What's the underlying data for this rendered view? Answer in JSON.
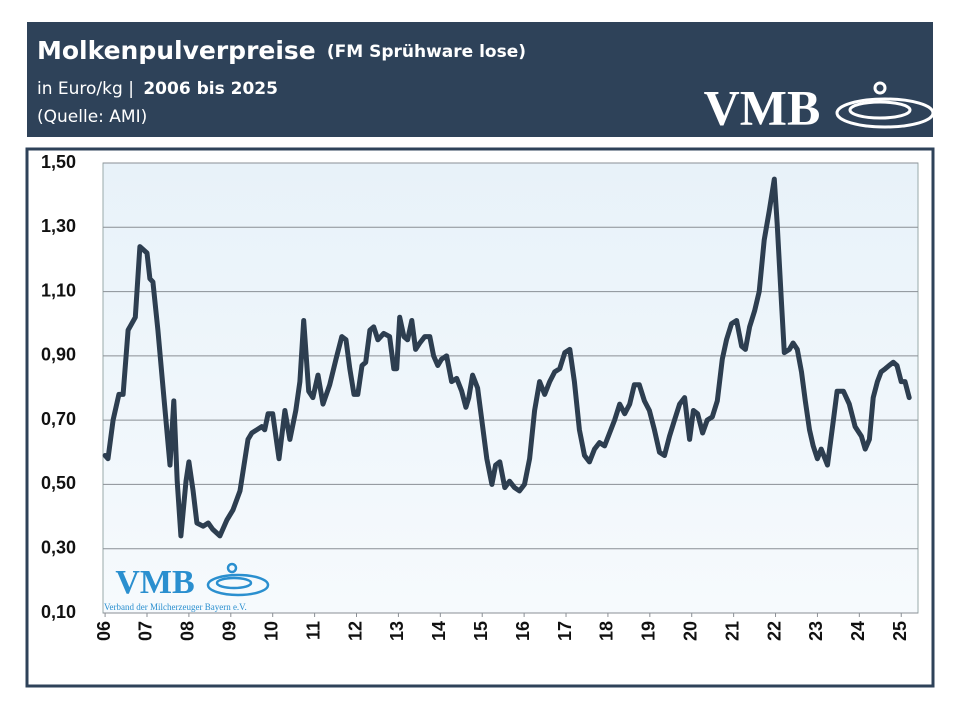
{
  "chart_data": {
    "type": "line",
    "title": "Molkenpulverpreise",
    "title_suffix": "(FM Sprühware lose)",
    "subtitle_unit": "in Euro/kg |",
    "subtitle_period": "2006 bis 2025",
    "source": "(Quelle: AMI)",
    "logo": "VMB",
    "watermark": "VMB",
    "watermark_caption": "Verband der Milcherzeuger Bayern e.V.",
    "color": "#2d3e50",
    "grid": true,
    "xlim": [
      2005.95,
      2025.4
    ],
    "xticks": [
      {
        "value": 2006,
        "label": "06"
      },
      {
        "value": 2007,
        "label": "07"
      },
      {
        "value": 2008,
        "label": "08"
      },
      {
        "value": 2009,
        "label": "09"
      },
      {
        "value": 2010,
        "label": "10"
      },
      {
        "value": 2011,
        "label": "11"
      },
      {
        "value": 2012,
        "label": "12"
      },
      {
        "value": 2013,
        "label": "13"
      },
      {
        "value": 2014,
        "label": "14"
      },
      {
        "value": 2015,
        "label": "15"
      },
      {
        "value": 2016,
        "label": "16"
      },
      {
        "value": 2017,
        "label": "17"
      },
      {
        "value": 2018,
        "label": "18"
      },
      {
        "value": 2019,
        "label": "19"
      },
      {
        "value": 2020,
        "label": "20"
      },
      {
        "value": 2021,
        "label": "21"
      },
      {
        "value": 2022,
        "label": "22"
      },
      {
        "value": 2023,
        "label": "23"
      },
      {
        "value": 2024,
        "label": "24"
      },
      {
        "value": 2025,
        "label": "25"
      }
    ],
    "ylim": [
      0.1,
      1.5
    ],
    "yticks": [
      {
        "value": 0.1,
        "label": "0,10"
      },
      {
        "value": 0.3,
        "label": "0,30"
      },
      {
        "value": 0.5,
        "label": "0,50"
      },
      {
        "value": 0.7,
        "label": "0,70"
      },
      {
        "value": 0.9,
        "label": "0,90"
      },
      {
        "value": 1.1,
        "label": "1,10"
      },
      {
        "value": 1.3,
        "label": "1,30"
      },
      {
        "value": 1.5,
        "label": "1,50"
      }
    ],
    "x": [
      2006.0,
      2006.07,
      2006.19,
      2006.33,
      2006.43,
      2006.55,
      2006.72,
      2006.83,
      2007.0,
      2007.07,
      2007.14,
      2007.26,
      2007.41,
      2007.55,
      2007.64,
      2007.72,
      2007.81,
      2007.93,
      2008.0,
      2008.1,
      2008.19,
      2008.34,
      2008.46,
      2008.57,
      2008.74,
      2008.91,
      2009.05,
      2009.22,
      2009.41,
      2009.5,
      2009.62,
      2009.74,
      2009.81,
      2009.89,
      2010.0,
      2010.15,
      2010.29,
      2010.41,
      2010.55,
      2010.65,
      2010.74,
      2010.86,
      2010.96,
      2011.08,
      2011.2,
      2011.36,
      2011.51,
      2011.65,
      2011.75,
      2011.84,
      2011.94,
      2012.03,
      2012.13,
      2012.22,
      2012.32,
      2012.41,
      2012.51,
      2012.65,
      2012.79,
      2012.89,
      2012.96,
      2013.03,
      2013.13,
      2013.22,
      2013.32,
      2013.41,
      2013.51,
      2013.63,
      2013.75,
      2013.84,
      2013.94,
      2014.03,
      2014.15,
      2014.27,
      2014.39,
      2014.51,
      2014.61,
      2014.68,
      2014.77,
      2014.89,
      2014.99,
      2015.11,
      2015.23,
      2015.32,
      2015.42,
      2015.54,
      2015.65,
      2015.77,
      2015.89,
      2016.01,
      2016.13,
      2016.25,
      2016.37,
      2016.49,
      2016.61,
      2016.73,
      2016.85,
      2016.97,
      2017.09,
      2017.2,
      2017.32,
      2017.44,
      2017.56,
      2017.68,
      2017.8,
      2017.92,
      2018.04,
      2018.16,
      2018.28,
      2018.4,
      2018.52,
      2018.63,
      2018.75,
      2018.87,
      2018.99,
      2019.11,
      2019.23,
      2019.35,
      2019.47,
      2019.59,
      2019.71,
      2019.83,
      2019.95,
      2020.04,
      2020.14,
      2020.26,
      2020.37,
      2020.49,
      2020.61,
      2020.73,
      2020.83,
      2020.95,
      2021.07,
      2021.19,
      2021.28,
      2021.38,
      2021.5,
      2021.61,
      2021.73,
      2021.85,
      2021.97,
      2022.04,
      2022.14,
      2022.21,
      2022.33,
      2022.42,
      2022.52,
      2022.62,
      2022.71,
      2022.81,
      2022.9,
      2023.0,
      2023.09,
      2023.24,
      2023.38,
      2023.47,
      2023.62,
      2023.76,
      2023.9,
      2024.05,
      2024.14,
      2024.24,
      2024.33,
      2024.43,
      2024.52,
      2024.62,
      2024.71,
      2024.81,
      2024.9,
      2025.0,
      2025.09,
      2025.19
    ],
    "values": [
      0.59,
      0.58,
      0.7,
      0.78,
      0.78,
      0.98,
      1.02,
      1.24,
      1.22,
      1.14,
      1.13,
      0.98,
      0.76,
      0.56,
      0.76,
      0.51,
      0.34,
      0.51,
      0.57,
      0.48,
      0.38,
      0.37,
      0.38,
      0.36,
      0.34,
      0.39,
      0.42,
      0.48,
      0.64,
      0.66,
      0.67,
      0.68,
      0.67,
      0.72,
      0.72,
      0.58,
      0.73,
      0.64,
      0.73,
      0.82,
      1.01,
      0.79,
      0.77,
      0.84,
      0.75,
      0.81,
      0.89,
      0.96,
      0.95,
      0.86,
      0.78,
      0.78,
      0.87,
      0.88,
      0.98,
      0.99,
      0.95,
      0.97,
      0.96,
      0.86,
      0.86,
      1.02,
      0.96,
      0.95,
      1.01,
      0.92,
      0.94,
      0.96,
      0.96,
      0.9,
      0.87,
      0.89,
      0.9,
      0.82,
      0.83,
      0.79,
      0.74,
      0.77,
      0.84,
      0.8,
      0.7,
      0.58,
      0.5,
      0.56,
      0.57,
      0.49,
      0.51,
      0.49,
      0.48,
      0.5,
      0.58,
      0.73,
      0.82,
      0.78,
      0.82,
      0.85,
      0.86,
      0.91,
      0.92,
      0.82,
      0.67,
      0.59,
      0.57,
      0.61,
      0.63,
      0.62,
      0.66,
      0.7,
      0.75,
      0.72,
      0.75,
      0.81,
      0.81,
      0.76,
      0.73,
      0.67,
      0.6,
      0.59,
      0.65,
      0.7,
      0.75,
      0.77,
      0.64,
      0.73,
      0.72,
      0.66,
      0.7,
      0.71,
      0.76,
      0.89,
      0.95,
      1.0,
      1.01,
      0.93,
      0.92,
      0.99,
      1.04,
      1.1,
      1.26,
      1.35,
      1.45,
      1.31,
      1.07,
      0.91,
      0.92,
      0.94,
      0.92,
      0.85,
      0.76,
      0.67,
      0.62,
      0.58,
      0.61,
      0.56,
      0.7,
      0.79,
      0.79,
      0.75,
      0.68,
      0.65,
      0.61,
      0.64,
      0.77,
      0.82,
      0.85,
      0.86,
      0.87,
      0.88,
      0.87,
      0.82,
      0.82,
      0.77
    ]
  }
}
